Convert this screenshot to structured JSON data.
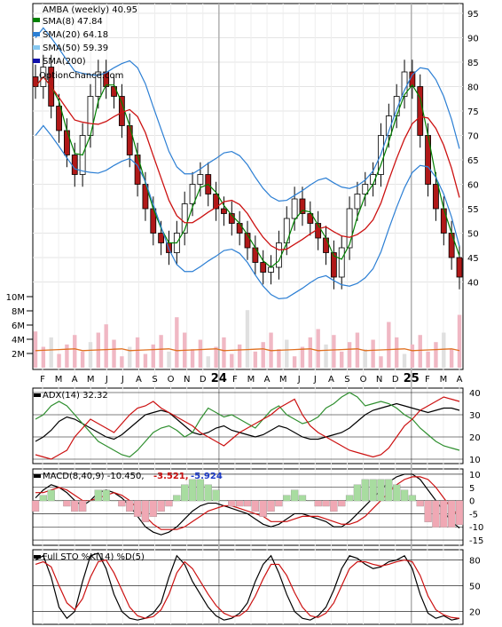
{
  "chart_data": [
    {
      "type": "candlestick",
      "panel": "price",
      "title": "AMBA (weekly) 40.95",
      "watermark": "OptionChance.com",
      "legend": [
        {
          "label": "SMA(8) 47.84",
          "color": "#008000"
        },
        {
          "label": "SMA(20) 64.18",
          "color": "#2c7fd4"
        },
        {
          "label": "SMA(50) 59.39",
          "color": "#87c8f0"
        },
        {
          "label": "SMA(200)",
          "color": "#1010aa"
        }
      ],
      "ylim": [
        35,
        97
      ],
      "yticks": [
        40,
        45,
        50,
        55,
        60,
        65,
        70,
        75,
        80,
        85,
        90,
        95
      ],
      "x_labels": [
        "F",
        "M",
        "A",
        "M",
        "J",
        "J",
        "A",
        "S",
        "O",
        "N",
        "D",
        "24",
        "F",
        "M",
        "A",
        "M",
        "J",
        "J",
        "A",
        "S",
        "O",
        "N",
        "D",
        "25",
        "F",
        "M",
        "A"
      ],
      "close_trace": [
        80,
        84,
        76,
        71,
        66,
        62,
        70,
        78,
        83,
        80,
        78,
        72,
        66,
        60,
        55,
        50,
        48,
        46,
        50,
        56,
        60,
        62,
        58,
        55,
        54,
        52,
        50,
        47,
        44,
        42,
        43,
        48,
        53,
        57,
        54,
        52,
        49,
        46,
        41,
        47,
        55,
        58,
        60,
        62,
        70,
        74,
        78,
        83,
        80,
        70,
        60,
        55,
        50,
        45,
        41
      ],
      "volume_axis": {
        "ylim": [
          0,
          12
        ],
        "ticks": [
          2,
          4,
          6,
          8,
          10
        ],
        "tick_labels": [
          "2M",
          "4M",
          "6M",
          "8M",
          "10M"
        ]
      }
    },
    {
      "type": "line",
      "panel": "adx",
      "title": "ADX(14) 32.32",
      "ylim": [
        8,
        42
      ],
      "yticks": [
        10,
        20,
        30,
        40
      ],
      "series": [
        {
          "color": "#000000",
          "values": [
            18,
            20,
            23,
            27,
            29,
            28,
            26,
            24,
            22,
            20,
            19,
            21,
            24,
            27,
            30,
            31,
            32,
            31,
            28,
            25,
            22,
            21,
            22,
            24,
            25,
            23,
            22,
            21,
            20,
            21,
            23,
            25,
            24,
            22,
            20,
            19,
            19,
            20,
            21,
            22,
            24,
            27,
            30,
            32,
            33,
            34,
            35,
            34,
            33,
            32,
            31,
            32,
            33,
            33,
            32
          ]
        },
        {
          "color": "#2f8f2f",
          "values": [
            28,
            30,
            34,
            36,
            34,
            30,
            26,
            22,
            18,
            16,
            14,
            12,
            11,
            14,
            18,
            22,
            24,
            25,
            23,
            20,
            22,
            28,
            33,
            31,
            29,
            30,
            28,
            26,
            24,
            28,
            32,
            34,
            30,
            28,
            26,
            27,
            29,
            33,
            35,
            38,
            40,
            38,
            34,
            35,
            36,
            35,
            33,
            30,
            28,
            24,
            21,
            18,
            16,
            15,
            14
          ]
        },
        {
          "color": "#cc1111",
          "values": [
            12,
            11,
            10,
            12,
            14,
            20,
            24,
            28,
            26,
            24,
            22,
            26,
            30,
            33,
            34,
            36,
            33,
            31,
            29,
            27,
            25,
            22,
            20,
            18,
            16,
            19,
            22,
            24,
            26,
            28,
            30,
            33,
            35,
            37,
            30,
            25,
            22,
            20,
            18,
            16,
            14,
            13,
            12,
            11,
            12,
            15,
            20,
            25,
            28,
            32,
            34,
            36,
            38,
            37,
            36
          ]
        }
      ]
    },
    {
      "type": "line",
      "panel": "macd",
      "title": "MACD(8,40,9) -10.450,",
      "annotations": [
        "-3.521,",
        "-5.924"
      ],
      "ylim": [
        -17,
        12
      ],
      "yticks": [
        10,
        5,
        0,
        -5,
        -10,
        -15
      ],
      "series": [
        {
          "color": "#000000",
          "values": [
            1,
            4,
            6,
            5,
            3,
            0,
            -2,
            0,
            3,
            4,
            3,
            1,
            -2,
            -6,
            -10,
            -12,
            -13,
            -12,
            -10,
            -7,
            -4,
            -2,
            -1,
            -1,
            -2,
            -3,
            -4,
            -5,
            -7,
            -9,
            -10,
            -9,
            -7,
            -5,
            -5,
            -6,
            -7,
            -8,
            -10,
            -10,
            -8,
            -5,
            -2,
            1,
            4,
            7,
            9,
            10,
            10,
            8,
            4,
            0,
            -4,
            -8,
            -10.45
          ]
        },
        {
          "color": "#cc1111",
          "values": [
            3,
            3,
            4,
            5,
            4,
            2,
            0,
            0,
            1,
            2,
            3,
            2,
            0,
            -3,
            -6,
            -9,
            -11,
            -11,
            -11,
            -10,
            -8,
            -6,
            -4,
            -3,
            -2,
            -2,
            -3,
            -4,
            -5,
            -6,
            -8,
            -8,
            -8,
            -7,
            -6,
            -6,
            -6,
            -7,
            -8,
            -9,
            -9,
            -8,
            -6,
            -3,
            0,
            3,
            6,
            8,
            9,
            9,
            8,
            5,
            1,
            -3,
            -5.92
          ]
        }
      ]
    },
    {
      "type": "line",
      "panel": "stochastic",
      "title": "Full STO %K(14) %D(5)",
      "ylim": [
        5,
        92
      ],
      "yticks": [
        80,
        50,
        20
      ],
      "series": [
        {
          "color": "#000000",
          "values": [
            80,
            85,
            60,
            25,
            12,
            20,
            55,
            85,
            88,
            70,
            40,
            20,
            12,
            10,
            12,
            18,
            30,
            60,
            85,
            75,
            55,
            40,
            25,
            15,
            10,
            12,
            18,
            30,
            55,
            75,
            85,
            65,
            40,
            20,
            12,
            10,
            15,
            25,
            45,
            70,
            85,
            82,
            75,
            70,
            72,
            78,
            80,
            85,
            70,
            40,
            18,
            12,
            15,
            10,
            12
          ]
        },
        {
          "color": "#cc1111",
          "values": [
            75,
            78,
            72,
            50,
            30,
            22,
            35,
            60,
            78,
            80,
            65,
            45,
            25,
            15,
            12,
            14,
            22,
            40,
            65,
            78,
            70,
            55,
            40,
            27,
            18,
            14,
            15,
            22,
            38,
            58,
            75,
            75,
            62,
            42,
            25,
            15,
            13,
            18,
            30,
            50,
            70,
            78,
            78,
            75,
            73,
            75,
            78,
            80,
            78,
            62,
            38,
            22,
            16,
            13,
            12
          ]
        }
      ]
    }
  ]
}
